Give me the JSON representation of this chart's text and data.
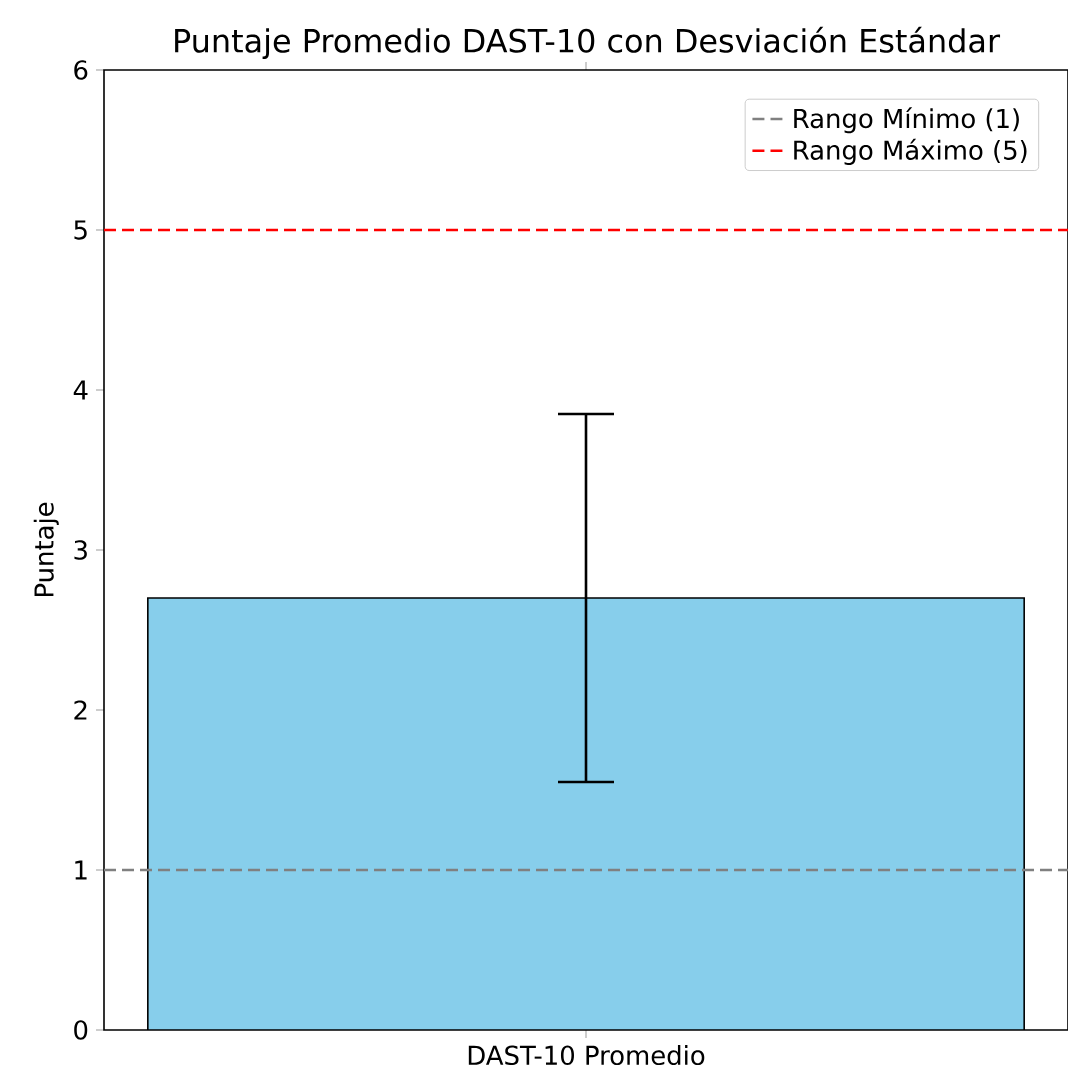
{
  "chart_data": {
    "type": "bar",
    "title": "Puntaje Promedio DAST-10 con Desviación Estándar",
    "ylabel": "Puntaje",
    "categories": [
      "DAST-10 Promedio"
    ],
    "values": [
      2.7
    ],
    "errors": [
      1.15
    ],
    "color": "#87ceeb",
    "ylim": [
      0,
      6
    ],
    "yticks": [
      0,
      1,
      2,
      3,
      4,
      5,
      6
    ],
    "ref_lines": [
      {
        "axis": "y",
        "value": 1,
        "label": "Rango Mínimo (1)",
        "color": "#808080",
        "line_style": "dashed"
      },
      {
        "axis": "y",
        "value": 5,
        "label": "Rango Máximo (5)",
        "color": "#ff0000",
        "line_style": "dashed"
      }
    ],
    "legend": "top right"
  }
}
